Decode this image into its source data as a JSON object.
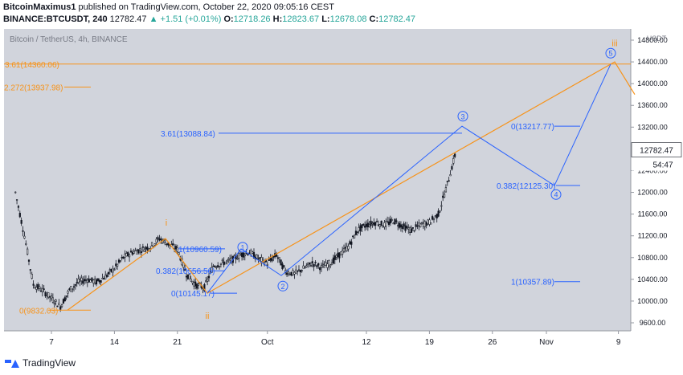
{
  "header": {
    "publisher": "BitcoinMaximus1",
    "published_text": "published on TradingView.com, October 22, 2020 09:05:16 CEST",
    "symbol": "BINANCE:BTCUSDT, 240",
    "last_price": "12782.47",
    "change": "▲ +1.51 (+0.01%)",
    "o_label": "O:",
    "o_value": "12718.26",
    "h_label": "H:",
    "h_value": "12823.67",
    "l_label": "L:",
    "l_value": "12678.08",
    "c_label": "C:",
    "c_value": "12782.47"
  },
  "footer": {
    "brand": "TradingView"
  },
  "colors": {
    "bg": "#d1d4dc",
    "blue": "#2962ff",
    "orange": "#f7931a",
    "candle": "#131722"
  },
  "chart_data": {
    "type": "candlestick",
    "title": "Bitcoin / TetherUS, 4h, BINANCE",
    "currency": "USDT",
    "yaxis_ticks": [
      "14800.00",
      "14400.00",
      "14000.00",
      "13600.00",
      "13200.00",
      "12400.00",
      "12000.00",
      "11600.00",
      "11200.00",
      "10800.00",
      "10400.00",
      "10000.00",
      "9600.00"
    ],
    "ylim": [
      9400,
      14900
    ],
    "xaxis_ticks": [
      "7",
      "14",
      "21",
      "Oct",
      "12",
      "19",
      "26",
      "Nov",
      "9"
    ],
    "last_price_label": "12782.47",
    "countdown_label": "54:47",
    "price_path": [
      [
        "2020-09-03",
        12000
      ],
      [
        "2020-09-04",
        11200
      ],
      [
        "2020-09-05",
        10300
      ],
      [
        "2020-09-06",
        10200
      ],
      [
        "2020-09-07",
        10050
      ],
      [
        "2020-09-08",
        9900
      ],
      [
        "2020-09-09",
        10200
      ],
      [
        "2020-09-10",
        10350
      ],
      [
        "2020-09-11",
        10400
      ],
      [
        "2020-09-12",
        10350
      ],
      [
        "2020-09-13",
        10450
      ],
      [
        "2020-09-14",
        10600
      ],
      [
        "2020-09-15",
        10800
      ],
      [
        "2020-09-16",
        10900
      ],
      [
        "2020-09-17",
        10950
      ],
      [
        "2020-09-18",
        11000
      ],
      [
        "2020-09-19",
        11150
      ],
      [
        "2020-09-20",
        11050
      ],
      [
        "2020-09-21",
        10950
      ],
      [
        "2020-09-22",
        10500
      ],
      [
        "2020-09-23",
        10300
      ],
      [
        "2020-09-24",
        10250
      ],
      [
        "2020-09-25",
        10650
      ],
      [
        "2020-09-26",
        10700
      ],
      [
        "2020-09-27",
        10750
      ],
      [
        "2020-09-28",
        10850
      ],
      [
        "2020-09-29",
        10900
      ],
      [
        "2020-09-30",
        10780
      ],
      [
        "2020-10-01",
        10700
      ],
      [
        "2020-10-02",
        10850
      ],
      [
        "2020-10-03",
        10550
      ],
      [
        "2020-10-04",
        10500
      ],
      [
        "2020-10-05",
        10600
      ],
      [
        "2020-10-06",
        10700
      ],
      [
        "2020-10-07",
        10620
      ],
      [
        "2020-10-08",
        10700
      ],
      [
        "2020-10-09",
        10850
      ],
      [
        "2020-10-10",
        11000
      ],
      [
        "2020-10-11",
        11300
      ],
      [
        "2020-10-12",
        11400
      ],
      [
        "2020-10-13",
        11450
      ],
      [
        "2020-10-14",
        11400
      ],
      [
        "2020-10-15",
        11480
      ],
      [
        "2020-10-16",
        11380
      ],
      [
        "2020-10-17",
        11300
      ],
      [
        "2020-10-18",
        11400
      ],
      [
        "2020-10-19",
        11450
      ],
      [
        "2020-10-20",
        11600
      ],
      [
        "2020-10-21",
        12150
      ],
      [
        "2020-10-22",
        12782
      ]
    ],
    "annotations": {
      "blue_horizontals": [
        {
          "label": "3.61(13088.84)",
          "value": 13088.84
        },
        {
          "label": "0(13217.77)",
          "value": 13217.77
        },
        {
          "label": "0.382(12125.30)",
          "value": 12125.3
        },
        {
          "label": "1(10357.89)",
          "value": 10357.89
        },
        {
          "label": "1(10960.59)",
          "value": 10960.59
        },
        {
          "label": "0.382(10556.56)",
          "value": 10556.56
        },
        {
          "label": "0(10145.17)",
          "value": 10145.17
        }
      ],
      "orange_horizontals": [
        {
          "label": "3.61(14360.06)",
          "value": 14360.06
        },
        {
          "label": "2.272(13937.98)",
          "value": 13937.98
        },
        {
          "label": "0(9832.03)",
          "value": 9832.03
        }
      ],
      "blue_waves": [
        "1",
        "2",
        "3",
        "4",
        "5"
      ],
      "orange_waves": [
        "i",
        "ii",
        "iii"
      ]
    }
  }
}
